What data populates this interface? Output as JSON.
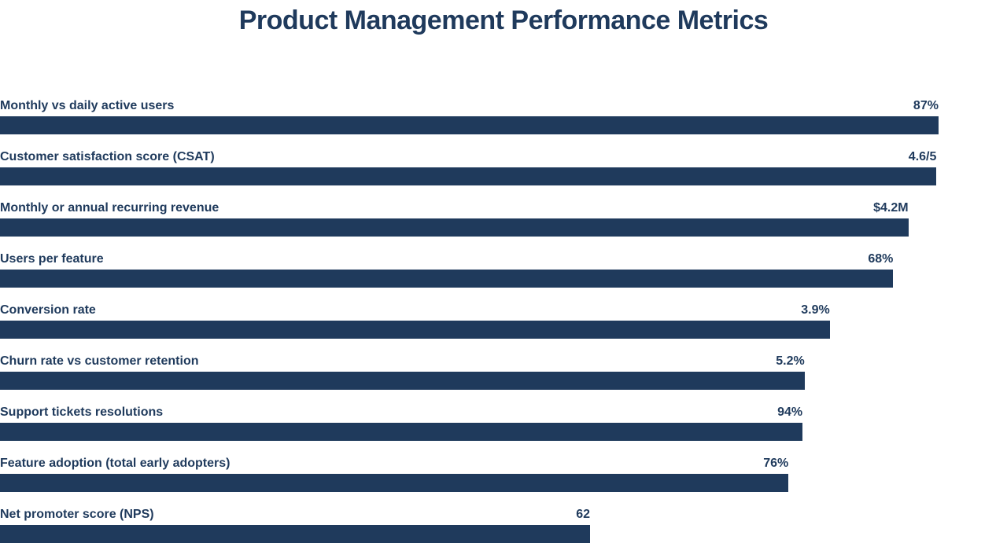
{
  "title": "Product Management Performance Metrics",
  "colors": {
    "bar": "#1f3a5c",
    "text": "#1f3a5c",
    "background": "#ffffff"
  },
  "chart_data": {
    "type": "bar",
    "orientation": "horizontal",
    "title": "Product Management Performance Metrics",
    "legend": false,
    "grid": false,
    "axes_visible": false,
    "bar_color": "#1f3a5c",
    "categories": [
      "Monthly vs daily active users",
      "Customer satisfaction score (CSAT)",
      "Monthly or annual recurring revenue",
      "Users per feature",
      "Conversion rate",
      "Churn rate vs customer retention",
      "Support tickets resolutions",
      "Feature adoption (total early adopters)",
      "Net promoter score (NPS)"
    ],
    "values": [
      "87%",
      "4.6/5",
      "$4.2M",
      "68%",
      "3.9%",
      "5.2%",
      "94%",
      "76%",
      "62"
    ],
    "bar_widths_pct": [
      93.2,
      93.0,
      90.2,
      88.7,
      82.4,
      79.9,
      79.7,
      78.3,
      58.6
    ]
  }
}
